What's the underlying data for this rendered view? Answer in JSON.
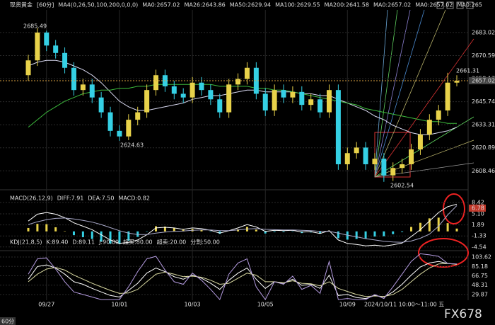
{
  "chart_data": [
    {
      "type": "candlestick",
      "header": [
        {
          "text": "现货黄金",
          "color": "#ffffff"
        },
        {
          "text": "[60分]",
          "color": "#ffd84a"
        },
        {
          "text": "MA4(0,26,50,100,200,0,0,0)",
          "color": "#dddddd"
        },
        {
          "text": "MA0:2657.02",
          "color": "#ffffff"
        },
        {
          "text": "MA26:2643.86",
          "color": "#c9a6ff"
        },
        {
          "text": "MA50:2629.94",
          "color": "#bbbbbb"
        },
        {
          "text": "MA100:2629.55",
          "color": "#5fd35f"
        },
        {
          "text": "MA200:2641.58",
          "color": "#cccccc"
        },
        {
          "text": "MA0:2657.02",
          "color": "#ff5a5a"
        },
        {
          "text": "MA0:2657.02",
          "color": "#ffb347"
        },
        {
          "text": "MA0:265",
          "color": "#b9b36a"
        }
      ],
      "categories": [
        null,
        null,
        "09/27",
        null,
        null,
        null,
        null,
        null,
        null,
        null,
        "10/01",
        null,
        null,
        null,
        null,
        null,
        null,
        null,
        "10/03",
        null,
        null,
        null,
        null,
        null,
        null,
        null,
        "10/05",
        null,
        null,
        null,
        null,
        null,
        null,
        null,
        null,
        "10/09",
        null,
        null,
        null,
        null,
        null,
        null,
        null,
        null,
        null,
        null,
        null,
        null
      ],
      "crosshair_label": "2024/10/11 10:00～11:00 五",
      "open": [
        2660,
        2668,
        2683,
        2676,
        2672,
        2664,
        2652,
        2655,
        2648,
        2640,
        2630,
        2627,
        2636,
        2640,
        2652,
        2660,
        2654,
        2650,
        2648,
        2656,
        2652,
        2647,
        2640,
        2655,
        2658,
        2664,
        2650,
        2641,
        2652,
        2648,
        2651,
        2644,
        2647,
        2640,
        2652,
        2612,
        2618,
        2621,
        2612,
        2615,
        2606,
        2610,
        2612,
        2620,
        2628,
        2636,
        2641,
        2656
      ],
      "high": [
        2671,
        2685.49,
        2684,
        2679,
        2675,
        2667,
        2658,
        2658,
        2651,
        2643,
        2633,
        2639,
        2643,
        2655,
        2663,
        2663,
        2657,
        2653,
        2659,
        2659,
        2655,
        2650,
        2658,
        2661,
        2667,
        2667,
        2653,
        2655,
        2655,
        2654,
        2654,
        2650,
        2650,
        2655,
        2655,
        2621,
        2624,
        2624,
        2618,
        2618,
        2613,
        2615,
        2623,
        2631,
        2639,
        2644,
        2661.31,
        2660
      ],
      "low": [
        2657,
        2665,
        2673,
        2669,
        2661,
        2649,
        2649,
        2645,
        2637,
        2627,
        2624.63,
        2625,
        2633,
        2637,
        2649,
        2651,
        2647,
        2645,
        2645,
        2649,
        2644,
        2637,
        2637,
        2652,
        2655,
        2647,
        2638,
        2638,
        2645,
        2645,
        2641,
        2641,
        2637,
        2637,
        2609,
        2609,
        2615,
        2609,
        2609,
        2602.54,
        2603,
        2607,
        2609,
        2617,
        2625,
        2633,
        2638,
        2654
      ],
      "close": [
        2668,
        2683,
        2676,
        2672,
        2664,
        2652,
        2655,
        2648,
        2640,
        2630,
        2627,
        2636,
        2640,
        2652,
        2660,
        2654,
        2650,
        2648,
        2656,
        2652,
        2647,
        2640,
        2655,
        2658,
        2664,
        2650,
        2641,
        2652,
        2648,
        2651,
        2644,
        2647,
        2640,
        2652,
        2612,
        2618,
        2621,
        2612,
        2615,
        2606,
        2610,
        2612,
        2620,
        2628,
        2636,
        2641,
        2656,
        2657.02
      ],
      "up_color": "#e8d24a",
      "down_color": "#35d0e4",
      "lines": [
        {
          "color": "#d8d8f0",
          "values": [
            2665,
            2667,
            2668,
            2668,
            2667,
            2665,
            2663,
            2660,
            2656,
            2651,
            2646,
            2643,
            2641,
            2641,
            2642,
            2643,
            2644,
            2645,
            2647,
            2648,
            2649,
            2649,
            2650,
            2651,
            2652,
            2652,
            2651,
            2651,
            2651,
            2651,
            2650,
            2650,
            2649,
            2649,
            2647,
            2645,
            2643,
            2641,
            2638,
            2636,
            2633,
            2631,
            2629,
            2628,
            2628,
            2629,
            2630,
            2632
          ]
        },
        {
          "color": "#3dbb3d",
          "values": [
            2632,
            2636,
            2640,
            2643,
            2646,
            2648,
            2650,
            2651,
            2652,
            2652,
            2653,
            2653,
            2654,
            2654,
            2655,
            2655,
            2655,
            2655,
            2655,
            2655,
            2655,
            2654,
            2654,
            2654,
            2654,
            2653,
            2653,
            2652,
            2652,
            2651,
            2650,
            2649,
            2648,
            2647,
            2646,
            2645,
            2644,
            2642,
            2641,
            2640,
            2639,
            2638,
            2637,
            2636,
            2635,
            2635,
            2634,
            2634
          ]
        }
      ],
      "ylim": [
        2599.4,
        2695.2
      ],
      "yticks": [
        2608.46,
        2620.89,
        2633.31,
        2645.74,
        2658.17,
        2670.59,
        2683.02
      ],
      "last_price": {
        "value": 2657.02,
        "label": "2657.02"
      },
      "annotations": [
        "2685.49",
        "2624.63",
        "2602.54",
        "2661.31"
      ],
      "period_tag": "60分",
      "watermark": "FX678"
    },
    {
      "type": "macd",
      "header": [
        {
          "text": "MACD(26,12,9)",
          "color": "#dddddd"
        },
        {
          "text": "DIFF:7.91",
          "color": "#ffffff"
        },
        {
          "text": "DEA:7.50",
          "color": "#c9a6ff"
        },
        {
          "text": "MACD:0.82",
          "color": "#ffd84a"
        }
      ],
      "series": [
        {
          "color": "#ffffff",
          "values": [
            3,
            5,
            5.5,
            5,
            4,
            2.5,
            1.5,
            0.5,
            -1,
            -2.5,
            -3.5,
            -3.2,
            -2.5,
            -1,
            1,
            1.2,
            1,
            0.6,
            1,
            0.8,
            0.3,
            -0.5,
            0.2,
            1,
            2,
            1.3,
            0,
            0.3,
            0.2,
            0.3,
            -0.2,
            -0.1,
            -0.6,
            0.2,
            -2.5,
            -3.5,
            -3.8,
            -4.2,
            -4,
            -4.3,
            -3.9,
            -3.4,
            -1.5,
            0.5,
            3,
            5.5,
            7.2,
            7.91
          ]
        },
        {
          "color": "#a9a9c9",
          "values": [
            2,
            2.8,
            3.4,
            3.8,
            3.9,
            3.6,
            3.2,
            2.7,
            2,
            1.1,
            0.2,
            -0.5,
            -0.9,
            -0.9,
            -0.5,
            -0.2,
            0,
            0.1,
            0.3,
            0.4,
            0.4,
            0.2,
            0.2,
            0.4,
            0.7,
            0.8,
            0.6,
            0.5,
            0.4,
            0.4,
            0.3,
            0.2,
            0,
            0,
            -0.5,
            -1.1,
            -1.6,
            -2.1,
            -2.5,
            -2.9,
            -3.1,
            -3.2,
            -2.8,
            -2,
            -0.8,
            1.5,
            4.8,
            7.5
          ]
        }
      ],
      "histogram": [
        1,
        2.2,
        2.1,
        1.2,
        0.1,
        -1.1,
        -1.7,
        -2.2,
        -3,
        -3.6,
        -3.7,
        -2.7,
        -1.6,
        -0.1,
        1.5,
        1.4,
        1,
        0.5,
        0.7,
        0.4,
        -0.1,
        -0.7,
        0,
        0.6,
        1.3,
        0.5,
        -0.6,
        -0.2,
        -0.2,
        -0.1,
        -0.5,
        -0.3,
        -0.6,
        0.2,
        -2,
        -2.4,
        -2.2,
        -2.1,
        -1.5,
        -1.4,
        -0.8,
        -0.2,
        1.3,
        2.5,
        3.8,
        4,
        2.4,
        0.82
      ],
      "up_color": "#e8d24a",
      "down_color": "#35d0e4",
      "ylim": [
        -5.2,
        11.3
      ],
      "yticks": [
        8.42,
        {
          "value": 5.1,
          "label": "5.10"
        },
        1.89,
        -1.33,
        -4.54
      ],
      "tag": {
        "value": 6.78,
        "label": "6.78"
      }
    },
    {
      "type": "kdj",
      "header": [
        {
          "text": "KDJ(21,8,5)",
          "color": "#dddddd"
        },
        {
          "text": "K:89.40",
          "color": "#ffffff"
        },
        {
          "text": "D:89.11",
          "color": "#ffd84a"
        },
        {
          "text": "J:90.00",
          "color": "#c9a6ff"
        },
        {
          "text": "超买:80.00",
          "color": "#ff6b6b"
        },
        {
          "text": "超卖:20.00",
          "color": "#ff6b6b"
        },
        {
          "text": "分割:50.00",
          "color": "#ff6b6b"
        }
      ],
      "series": [
        {
          "color": "#ffffff",
          "values": [
            60,
            85,
            88,
            82,
            70,
            55,
            50,
            42,
            35,
            28,
            25,
            38,
            52,
            72,
            82,
            75,
            65,
            60,
            68,
            62,
            52,
            40,
            58,
            72,
            82,
            60,
            42,
            55,
            52,
            60,
            48,
            50,
            42,
            68,
            28,
            30,
            24,
            22,
            28,
            25,
            35,
            50,
            68,
            84,
            92,
            95,
            91,
            89.4
          ]
        },
        {
          "color": "#d8d8a0",
          "values": [
            55,
            70,
            80,
            83,
            78,
            68,
            60,
            52,
            45,
            38,
            32,
            33,
            40,
            55,
            70,
            74,
            70,
            65,
            66,
            64,
            58,
            50,
            52,
            62,
            72,
            68,
            55,
            55,
            53,
            57,
            52,
            51,
            47,
            55,
            42,
            36,
            30,
            26,
            27,
            26,
            30,
            40,
            55,
            70,
            82,
            90,
            91,
            89.11
          ]
        },
        {
          "color": "#b49be0",
          "values": [
            70,
            100,
            102,
            80,
            55,
            35,
            30,
            25,
            20,
            20,
            20,
            45,
            75,
            100,
            105,
            78,
            55,
            50,
            72,
            58,
            40,
            20,
            70,
            92,
            100,
            45,
            20,
            55,
            50,
            66,
            40,
            48,
            32,
            95,
            20,
            22,
            20,
            20,
            30,
            22,
            45,
            70,
            95,
            110,
            108,
            105,
            91,
            90
          ]
        }
      ],
      "ylim": [
        18.7,
        113.4
      ],
      "yticks": [
        29.87,
        48.31,
        66.75,
        85.18,
        103.62
      ]
    }
  ]
}
